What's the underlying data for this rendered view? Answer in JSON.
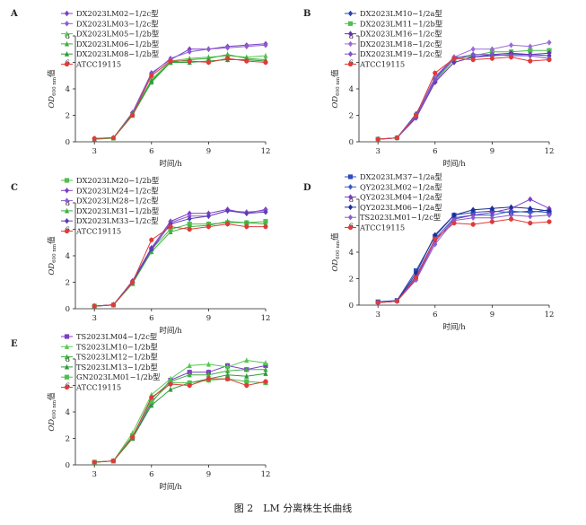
{
  "caption": "图 2　LM 分离株生长曲线",
  "chart_data": [
    {
      "type": "line",
      "panel": "A",
      "xlabel": "时间/h",
      "ylabel_main": "OD",
      "ylabel_sub": "600 nm",
      "ylabel_suffix": "值",
      "xlim": [
        2,
        12
      ],
      "ylim": [
        0,
        8
      ],
      "xticks": [
        3,
        6,
        9,
        12
      ],
      "yticks": [
        0,
        2,
        4,
        6,
        8
      ],
      "x": [
        3,
        4,
        5,
        6,
        7,
        8,
        9,
        10,
        11,
        12
      ],
      "series": [
        {
          "name": "DX2023LM02−1/2c型",
          "color": "#7b3fc4",
          "marker": "diamond",
          "values": [
            0.25,
            0.3,
            2.2,
            5.2,
            6.2,
            7.0,
            7.0,
            7.2,
            7.3,
            7.4
          ]
        },
        {
          "name": "DX2023LM03−1/2c型",
          "color": "#8e5cd0",
          "marker": "diamond",
          "values": [
            0.25,
            0.3,
            2.1,
            5.1,
            6.3,
            6.8,
            7.0,
            7.1,
            7.2,
            7.3
          ]
        },
        {
          "name": "DX2023LM05−1/2b型",
          "color": "#55c84f",
          "marker": "triangle",
          "values": [
            0.2,
            0.28,
            2.0,
            4.7,
            6.1,
            6.3,
            6.4,
            6.5,
            6.4,
            6.5
          ]
        },
        {
          "name": "DX2023LM06−1/2b型",
          "color": "#3fae3f",
          "marker": "triangle",
          "values": [
            0.2,
            0.28,
            2.0,
            4.5,
            6.0,
            6.2,
            6.3,
            6.6,
            6.3,
            6.2
          ]
        },
        {
          "name": "DX2023LM08−1/2b型",
          "color": "#2e9a3a",
          "marker": "triangle",
          "values": [
            0.22,
            0.3,
            2.1,
            4.6,
            6.0,
            6.0,
            6.1,
            6.2,
            6.2,
            6.1
          ]
        },
        {
          "name": "ATCC19115",
          "color": "#e03a3a",
          "marker": "circle",
          "values": [
            0.25,
            0.3,
            2.0,
            5.0,
            6.1,
            6.1,
            6.0,
            6.3,
            6.1,
            6.0
          ]
        }
      ]
    },
    {
      "type": "line",
      "panel": "B",
      "xlabel": "时间/h",
      "ylabel_main": "OD",
      "ylabel_sub": "600 nm",
      "ylabel_suffix": "值",
      "xlim": [
        2,
        12
      ],
      "ylim": [
        0,
        8
      ],
      "xticks": [
        3,
        6,
        9,
        12
      ],
      "yticks": [
        0,
        2,
        4,
        6,
        8
      ],
      "x": [
        3,
        4,
        5,
        6,
        7,
        8,
        9,
        10,
        11,
        12
      ],
      "series": [
        {
          "name": "DX2023LM10−1/2a型",
          "color": "#2c3fb8",
          "marker": "diamond",
          "values": [
            0.2,
            0.3,
            2.1,
            4.8,
            6.4,
            6.4,
            6.5,
            6.6,
            6.6,
            6.5
          ]
        },
        {
          "name": "DX2023LM11−1/2b型",
          "color": "#4fbf4f",
          "marker": "square",
          "values": [
            0.2,
            0.3,
            2.0,
            4.6,
            6.2,
            6.5,
            6.8,
            6.8,
            6.9,
            6.9
          ]
        },
        {
          "name": "DX2023LM16−1/2c型",
          "color": "#6a2fb8",
          "marker": "diamond",
          "values": [
            0.2,
            0.3,
            1.8,
            4.5,
            6.0,
            6.4,
            6.6,
            6.7,
            6.6,
            6.7
          ]
        },
        {
          "name": "DX2023LM18−1/2c型",
          "color": "#9a6ad8",
          "marker": "diamond",
          "values": [
            0.2,
            0.3,
            2.0,
            4.9,
            6.4,
            7.0,
            7.0,
            7.3,
            7.2,
            7.5
          ]
        },
        {
          "name": "DX2023LM19−1/2c型",
          "color": "#7d53c9",
          "marker": "diamond",
          "values": [
            0.2,
            0.3,
            1.9,
            4.7,
            6.3,
            6.6,
            6.6,
            6.5,
            6.5,
            6.3
          ]
        },
        {
          "name": "ATCC19115",
          "color": "#e03a3a",
          "marker": "circle",
          "values": [
            0.2,
            0.3,
            2.0,
            5.2,
            6.3,
            6.2,
            6.3,
            6.4,
            6.1,
            6.2
          ]
        }
      ]
    },
    {
      "type": "line",
      "panel": "C",
      "xlabel": "时间/h",
      "ylabel_main": "OD",
      "ylabel_sub": "600 nm",
      "ylabel_suffix": "值",
      "xlim": [
        2,
        12
      ],
      "ylim": [
        0,
        8
      ],
      "xticks": [
        3,
        6,
        9,
        12
      ],
      "yticks": [
        0,
        2,
        4,
        6,
        8
      ],
      "x": [
        3,
        4,
        5,
        6,
        7,
        8,
        9,
        10,
        11,
        12
      ],
      "series": [
        {
          "name": "DX2023LM20−1/2b型",
          "color": "#4fbf4f",
          "marker": "square",
          "values": [
            0.2,
            0.28,
            1.9,
            4.5,
            6.0,
            6.4,
            6.4,
            6.5,
            6.5,
            6.6
          ]
        },
        {
          "name": "DX2023LM24−1/2c型",
          "color": "#7b3fc4",
          "marker": "diamond",
          "values": [
            0.2,
            0.3,
            2.1,
            4.6,
            6.6,
            7.2,
            7.2,
            7.5,
            7.2,
            7.5
          ]
        },
        {
          "name": "DX2023LM28−1/2c型",
          "color": "#8e5cd0",
          "marker": "diamond",
          "values": [
            0.2,
            0.3,
            2.0,
            4.4,
            6.5,
            7.0,
            7.0,
            7.4,
            7.3,
            7.4
          ]
        },
        {
          "name": "DX2023LM31−1/2b型",
          "color": "#3fae3f",
          "marker": "triangle",
          "values": [
            0.2,
            0.28,
            1.9,
            4.3,
            5.8,
            6.2,
            6.3,
            6.6,
            6.5,
            6.4
          ]
        },
        {
          "name": "DX2023LM33−1/2c型",
          "color": "#5a3db5",
          "marker": "diamond",
          "values": [
            0.2,
            0.3,
            2.0,
            4.5,
            6.4,
            6.8,
            7.0,
            7.4,
            7.2,
            7.3
          ]
        },
        {
          "name": "ATCC19115",
          "color": "#e03a3a",
          "marker": "circle",
          "values": [
            0.2,
            0.3,
            2.0,
            5.2,
            6.2,
            6.0,
            6.2,
            6.4,
            6.2,
            6.2
          ]
        }
      ]
    },
    {
      "type": "line",
      "panel": "D",
      "xlabel": "时间/h",
      "ylabel_main": "OD",
      "ylabel_sub": "600 nm",
      "ylabel_suffix": "值",
      "xlim": [
        2,
        12
      ],
      "ylim": [
        0,
        8
      ],
      "xticks": [
        3,
        6,
        9,
        12
      ],
      "yticks": [
        0,
        2,
        4,
        6,
        8
      ],
      "x": [
        3,
        4,
        5,
        6,
        7,
        8,
        9,
        10,
        11,
        12
      ],
      "series": [
        {
          "name": "DX2023LM37−1/2a型",
          "color": "#2c4fb8",
          "marker": "square",
          "values": [
            0.25,
            0.35,
            2.6,
            5.2,
            6.8,
            7.0,
            7.1,
            7.0,
            7.1,
            7.0
          ]
        },
        {
          "name": "QY2023LM02−1/2a型",
          "color": "#3a5ac8",
          "marker": "diamond",
          "values": [
            0.2,
            0.3,
            2.2,
            5.0,
            6.6,
            6.8,
            6.8,
            7.1,
            7.0,
            7.2
          ]
        },
        {
          "name": "QY2023LM04−1/2a型",
          "color": "#7b3fc4",
          "marker": "diamond",
          "values": [
            0.2,
            0.3,
            2.0,
            4.8,
            6.5,
            6.8,
            7.0,
            7.3,
            8.0,
            7.3
          ]
        },
        {
          "name": "QY2023LM06−1/2a型",
          "color": "#1e2e9a",
          "marker": "diamond",
          "values": [
            0.2,
            0.3,
            2.4,
            5.3,
            6.8,
            7.2,
            7.3,
            7.4,
            7.3,
            7.1
          ]
        },
        {
          "name": "TS2023LM01−1/2c型",
          "color": "#8e5cd0",
          "marker": "diamond",
          "values": [
            0.2,
            0.3,
            1.9,
            4.6,
            6.4,
            6.6,
            6.6,
            6.8,
            6.7,
            6.8
          ]
        },
        {
          "name": "ATCC19115",
          "color": "#e03a3a",
          "marker": "circle",
          "values": [
            0.2,
            0.3,
            2.1,
            5.0,
            6.2,
            6.1,
            6.3,
            6.5,
            6.2,
            6.3
          ]
        }
      ]
    },
    {
      "type": "line",
      "panel": "E",
      "xlabel": "时间/h",
      "ylabel_main": "OD",
      "ylabel_sub": "600 nm",
      "ylabel_suffix": "值",
      "xlim": [
        2,
        12
      ],
      "ylim": [
        0,
        8
      ],
      "xticks": [
        3,
        6,
        9,
        12
      ],
      "yticks": [
        0,
        2,
        4,
        6,
        8
      ],
      "x": [
        3,
        4,
        5,
        6,
        7,
        8,
        9,
        10,
        11,
        12
      ],
      "series": [
        {
          "name": "TS2023LM04−1/2c型",
          "color": "#7b3fc4",
          "marker": "square",
          "values": [
            0.2,
            0.3,
            2.0,
            4.7,
            6.4,
            7.0,
            7.0,
            7.5,
            7.2,
            7.5
          ]
        },
        {
          "name": "TS2023LM10−1/2b型",
          "color": "#55c84f",
          "marker": "triangle",
          "values": [
            0.2,
            0.3,
            2.4,
            5.3,
            6.5,
            7.5,
            7.6,
            7.4,
            7.9,
            7.7
          ]
        },
        {
          "name": "TS2023LM12−1/2b型",
          "color": "#3fae3f",
          "marker": "triangle",
          "values": [
            0.2,
            0.3,
            2.1,
            5.0,
            6.3,
            6.8,
            6.8,
            7.1,
            7.2,
            7.2
          ]
        },
        {
          "name": "TS2023LM13−1/2b型",
          "color": "#2e9a3a",
          "marker": "triangle",
          "values": [
            0.2,
            0.3,
            2.0,
            4.5,
            5.7,
            6.2,
            6.5,
            6.8,
            6.7,
            6.9
          ]
        },
        {
          "name": "GN2023LM01−1/2b型",
          "color": "#4fbf4f",
          "marker": "square",
          "values": [
            0.2,
            0.3,
            2.2,
            4.8,
            6.2,
            6.2,
            6.4,
            6.5,
            6.3,
            6.2
          ]
        },
        {
          "name": "ATCC19115",
          "color": "#e03a3a",
          "marker": "circle",
          "values": [
            0.2,
            0.3,
            2.1,
            5.1,
            6.1,
            6.0,
            6.5,
            6.5,
            6.0,
            6.3
          ]
        }
      ]
    }
  ]
}
